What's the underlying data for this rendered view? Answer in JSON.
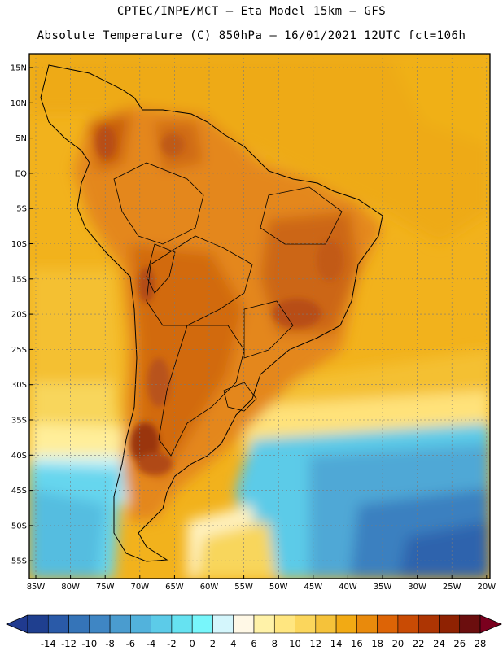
{
  "header": {
    "line1": "CPTEC/INPE/MCT –  Eta Model 15km – GFS",
    "line2": "Absolute Temperature (C) 850hPa – 16/01/2021 12UTC fct=106h"
  },
  "map": {
    "lat_labels": [
      "15N",
      "10N",
      "5N",
      "EQ",
      "5S",
      "10S",
      "15S",
      "20S",
      "25S",
      "30S",
      "35S",
      "40S",
      "45S",
      "50S",
      "55S"
    ],
    "lon_labels": [
      "85W",
      "80W",
      "75W",
      "70W",
      "65W",
      "60W",
      "55W",
      "50W",
      "45W",
      "40W",
      "35W",
      "30W",
      "25W",
      "20W"
    ]
  },
  "colorbar": {
    "labels": [
      "-14",
      "-12",
      "-10",
      "-8",
      "-6",
      "-4",
      "-2",
      "0",
      "2",
      "4",
      "6",
      "8",
      "10",
      "12",
      "14",
      "16",
      "18",
      "20",
      "22",
      "24",
      "26",
      "28"
    ],
    "colors": [
      "#1f3f8f",
      "#2a5aa8",
      "#3574b8",
      "#3f86c4",
      "#4a9ccf",
      "#52b2dc",
      "#5ccbe8",
      "#66e2f1",
      "#78f6fb",
      "#d4f6fc",
      "#fff8e6",
      "#fff2a8",
      "#ffe680",
      "#fbd65c",
      "#f5c23a",
      "#f2aa14",
      "#e98a0c",
      "#dd6406",
      "#c94b04",
      "#ad3503",
      "#8f2202",
      "#6b0e0e"
    ],
    "under_color": "#203a8f",
    "over_color": "#7a001e"
  }
}
